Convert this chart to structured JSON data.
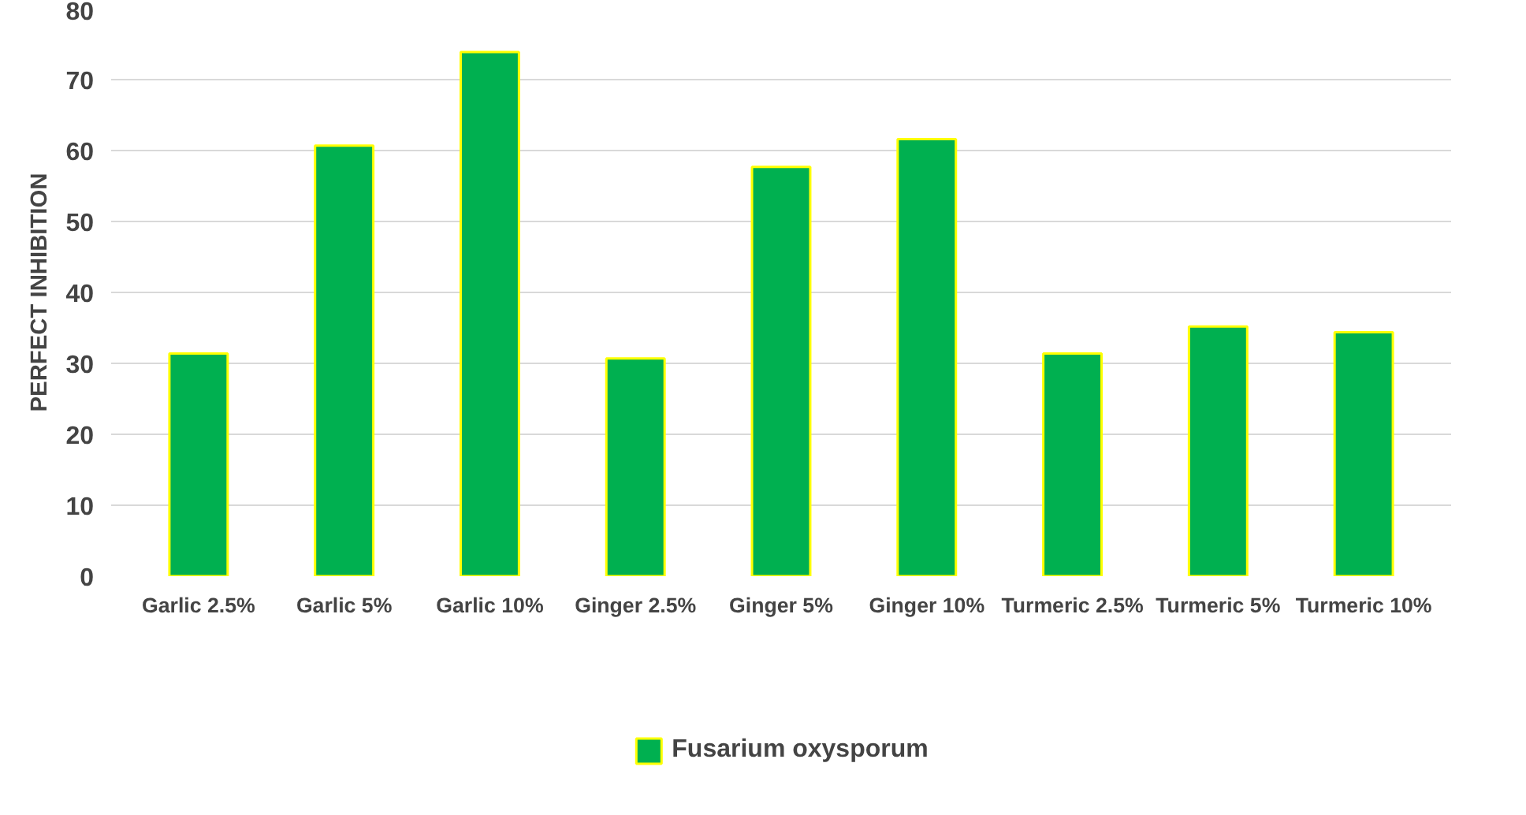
{
  "chart_data": {
    "type": "bar",
    "ylabel": "PERFECT INHIBITION",
    "categories": [
      "Garlic 2.5%",
      "Garlic 5%",
      "Garlic 10%",
      "Ginger 2.5%",
      "Ginger 5%",
      "Ginger 10%",
      "Turmeric 2.5%",
      "Turmeric 5%",
      "Turmeric 10%"
    ],
    "series": [
      {
        "name": "Fusarium oxysporum",
        "color": "#00b050",
        "values": [
          31.4,
          60.7,
          73.9,
          30.7,
          57.7,
          61.6,
          31.4,
          35.2,
          34.4
        ]
      }
    ],
    "ylim": [
      0,
      80
    ],
    "yticks": [
      0,
      10,
      20,
      30,
      40,
      50,
      60,
      70,
      80
    ],
    "grid": "y",
    "legend": "bottom"
  }
}
